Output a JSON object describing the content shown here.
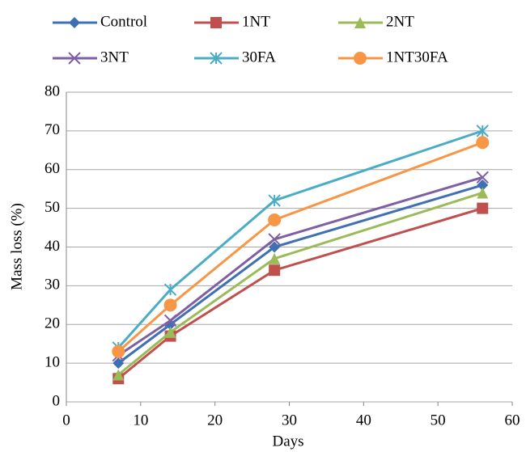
{
  "chart_data": {
    "type": "line",
    "x": [
      7,
      14,
      28,
      56
    ],
    "x_label": "Days",
    "y_label": "Mass loss (%)",
    "xlim": [
      0,
      60
    ],
    "xticks": [
      0,
      10,
      20,
      30,
      40,
      50,
      60
    ],
    "ylim": [
      0,
      80
    ],
    "yticks": [
      0,
      10,
      20,
      30,
      40,
      50,
      60,
      70,
      80
    ],
    "grid": true,
    "legend": "top",
    "series": [
      {
        "name": "Control",
        "color": "#3f6fb5",
        "marker": "diamond",
        "values": [
          10,
          20,
          40,
          56
        ]
      },
      {
        "name": "1NT",
        "color": "#c0504d",
        "marker": "square",
        "values": [
          6,
          17,
          34,
          50
        ]
      },
      {
        "name": "2NT",
        "color": "#9bbb59",
        "marker": "triangle",
        "values": [
          7,
          18,
          37,
          54
        ]
      },
      {
        "name": "3NT",
        "color": "#7f5fa3",
        "marker": "x",
        "values": [
          12,
          21,
          42,
          58
        ]
      },
      {
        "name": "30FA",
        "color": "#4bacc6",
        "marker": "star",
        "values": [
          14,
          29,
          52,
          70
        ]
      },
      {
        "name": "1NT30FA",
        "color": "#f79646",
        "marker": "circle",
        "values": [
          13,
          25,
          47,
          67
        ]
      }
    ]
  }
}
